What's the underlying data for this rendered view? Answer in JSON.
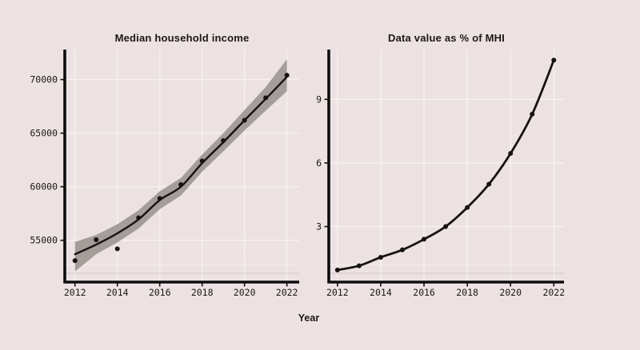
{
  "colors": {
    "background": "#ece2e3",
    "grid": "#f7f1f1",
    "axis": "#0f0c0c",
    "text": "#1c1717",
    "line": "#161212",
    "band": "#a49d99",
    "baseline_shadow": "#d6cdcd",
    "baseline_light": "#f3ecec"
  },
  "xlabel": "Year",
  "chart_data": [
    {
      "type": "scatter",
      "title": "Median household income",
      "x": [
        2012,
        2013,
        2014,
        2015,
        2016,
        2017,
        2018,
        2019,
        2020,
        2021,
        2022
      ],
      "points": [
        53100,
        55050,
        54200,
        57100,
        58900,
        60200,
        62400,
        64300,
        66200,
        68300,
        70400
      ],
      "smooth": [
        53700,
        54600,
        55650,
        56950,
        58750,
        60000,
        62200,
        64150,
        66200,
        68200,
        70250
      ],
      "band_lower": [
        52100,
        53700,
        54800,
        56100,
        57900,
        59180,
        61400,
        63300,
        65250,
        67100,
        68900
      ],
      "band_upper": [
        54850,
        55500,
        56500,
        57800,
        59570,
        60820,
        63000,
        65000,
        67150,
        69300,
        71900
      ],
      "xticks": [
        "2012",
        "2014",
        "2016",
        "2018",
        "2020",
        "2022"
      ],
      "yticks": [
        "55000",
        "60000",
        "65000",
        "70000"
      ],
      "xlim": [
        2011.52,
        2022.58
      ],
      "ylim": [
        51100,
        72800
      ],
      "grid": true,
      "legend": "none"
    },
    {
      "type": "line",
      "title": "Data value as % of MHI",
      "x": [
        2012,
        2013,
        2014,
        2015,
        2016,
        2017,
        2018,
        2019,
        2020,
        2021,
        2022
      ],
      "points": [
        0.95,
        1.15,
        1.55,
        1.9,
        2.4,
        3.0,
        3.9,
        5.0,
        6.45,
        8.3,
        10.85
      ],
      "xticks": [
        "2012",
        "2014",
        "2016",
        "2018",
        "2020",
        "2022"
      ],
      "yticks": [
        "3",
        "6",
        "9"
      ],
      "xlim": [
        2011.6,
        2022.47
      ],
      "ylim": [
        0.38,
        11.35
      ],
      "grid": true,
      "legend": "none"
    }
  ]
}
